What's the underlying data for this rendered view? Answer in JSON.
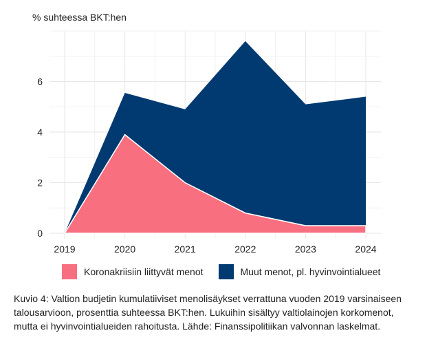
{
  "chart_data": {
    "type": "area",
    "stacked": true,
    "ylabel": "% suhteessa BKT:hen",
    "x": [
      2019,
      2020,
      2021,
      2022,
      2023,
      2024
    ],
    "ylim": [
      0,
      8
    ],
    "yticks": [
      0,
      2,
      4,
      6
    ],
    "grid": true,
    "series": [
      {
        "name": "Koronakriisiin liittyvät menot",
        "color": "#f86f80",
        "values": [
          0,
          3.9,
          2.0,
          0.8,
          0.3,
          0.3
        ]
      },
      {
        "name": "Muut menot, pl. hyvinvointialueet",
        "color": "#003a70",
        "values": [
          0,
          1.65,
          2.9,
          6.8,
          4.8,
          5.1
        ]
      }
    ],
    "legend_position": "bottom"
  },
  "caption": "Kuvio 4: Valtion budjetin kumulatiiviset menolisäykset verrattuna vuoden 2019 varsinaiseen talousarvioon, prosenttia suhteessa BKT:hen. Lukuihin sisältyy valtiolainojen korkomenot, mutta ei hyvinvointialueiden rahoitusta. Lähde: Finanssipolitiikan valvonnan laskelmat."
}
